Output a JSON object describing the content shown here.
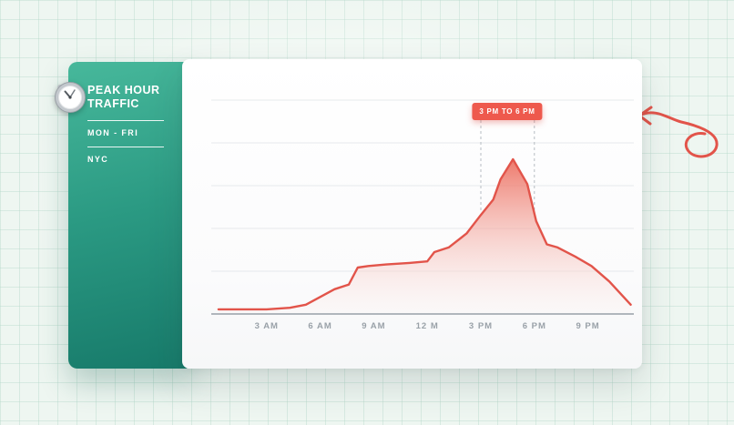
{
  "sidebar": {
    "title_line1": "PEAK HOUR",
    "title_line2": "TRAFFIC",
    "days": "MON - FRI",
    "location": "NYC",
    "gradient_top": "#47b89b",
    "gradient_bottom": "#177a6a",
    "icon": "clock-icon"
  },
  "chart_data": {
    "type": "area",
    "title": "PEAK HOUR TRAFFIC",
    "subtitle": "MON - FRI",
    "region": "NYC",
    "xlabel": "",
    "ylabel": "",
    "ylim": [
      0,
      100
    ],
    "grid": "on",
    "legend": "none",
    "line_color": "#e2544a",
    "fill_top_color": "#ec6e5f",
    "fill_bottom_color": "#fdf3f1",
    "x_ticks": [
      {
        "hour": 3,
        "label": "3 AM"
      },
      {
        "hour": 6,
        "label": "6 AM"
      },
      {
        "hour": 9,
        "label": "9 AM"
      },
      {
        "hour": 12,
        "label": "12 M"
      },
      {
        "hour": 15,
        "label": "3 PM"
      },
      {
        "hour": 18,
        "label": "6 PM"
      },
      {
        "hour": 21,
        "label": "9 PM"
      }
    ],
    "points": [
      [
        0.3,
        3
      ],
      [
        3,
        3
      ],
      [
        4.3,
        4
      ],
      [
        5.2,
        6
      ],
      [
        6,
        11
      ],
      [
        6.8,
        16
      ],
      [
        7.6,
        19
      ],
      [
        8.1,
        30
      ],
      [
        8.7,
        31
      ],
      [
        9.7,
        32
      ],
      [
        11,
        33
      ],
      [
        12,
        34
      ],
      [
        12.4,
        40
      ],
      [
        13.2,
        43
      ],
      [
        14.2,
        52
      ],
      [
        15,
        64
      ],
      [
        15.7,
        74
      ],
      [
        16.1,
        87
      ],
      [
        16.8,
        100
      ],
      [
        17.6,
        84
      ],
      [
        18.1,
        60
      ],
      [
        18.7,
        45
      ],
      [
        19.3,
        43
      ],
      [
        20.3,
        37
      ],
      [
        21.2,
        31
      ],
      [
        22.2,
        21
      ],
      [
        23.4,
        6
      ]
    ],
    "annotation": {
      "label": "3 PM TO 6 PM",
      "from_hour": 15,
      "to_hour": 18,
      "color": "#ee594d"
    }
  },
  "doodle": {
    "name": "arrow-doodle",
    "color": "#e2544a"
  }
}
